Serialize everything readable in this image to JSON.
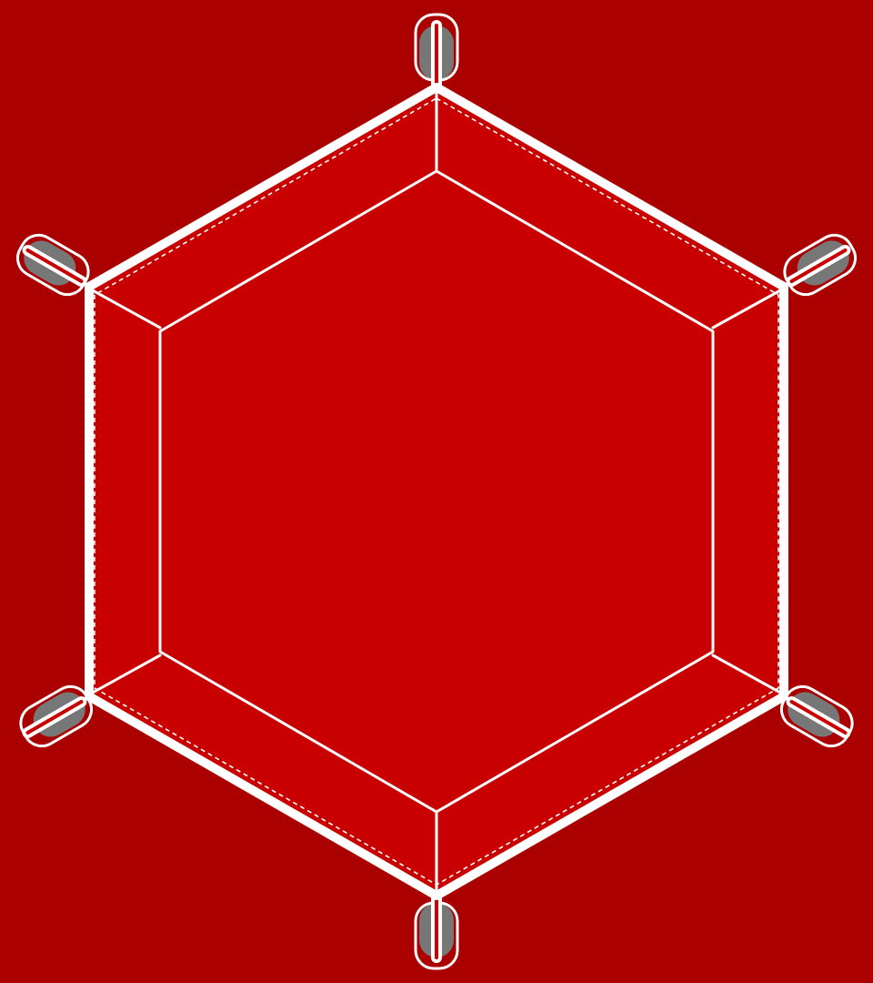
{
  "colors": {
    "background": "#aa0000",
    "tray_fill": "#c80000",
    "outline": "#ffffff",
    "clip_shadow": "#777777"
  },
  "tray": {
    "shape": "hexagon",
    "corner_clips": 6,
    "stitching": "dashed"
  }
}
